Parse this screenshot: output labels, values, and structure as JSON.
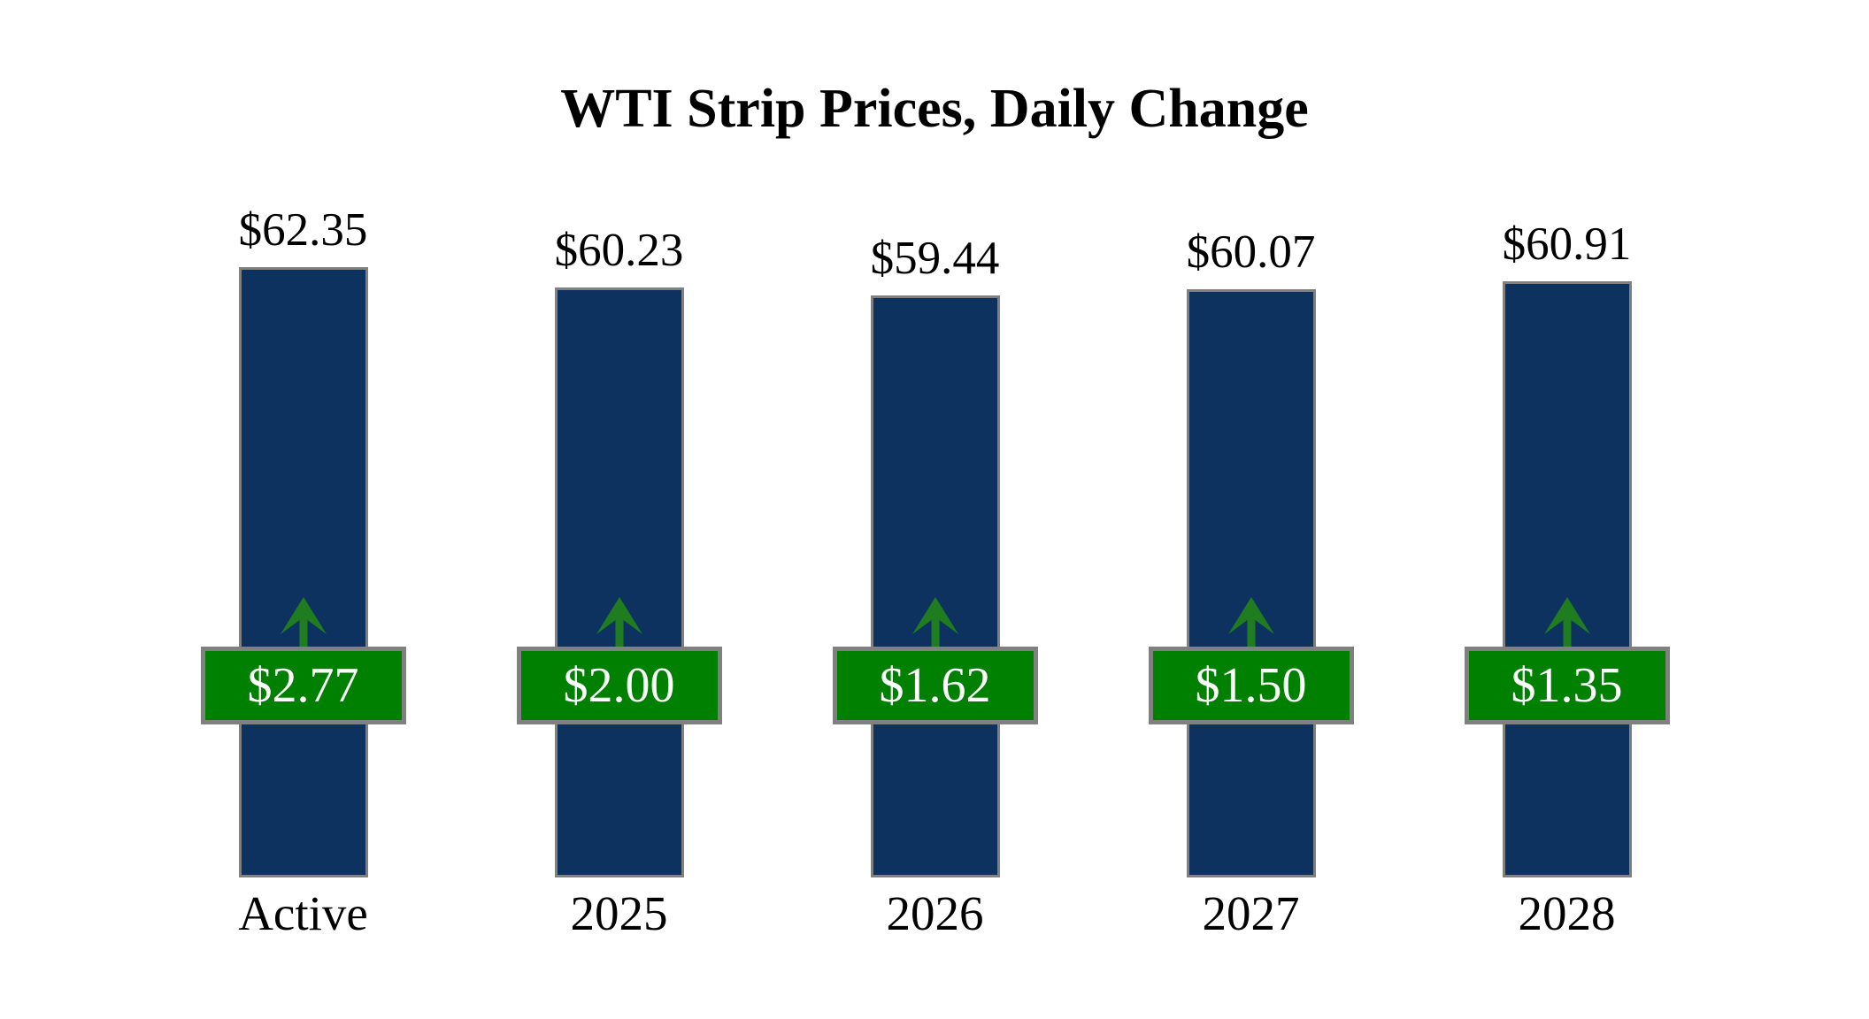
{
  "chart_data": {
    "type": "bar",
    "title": "WTI Strip Prices, Daily Change",
    "categories": [
      "Active",
      "2025",
      "2026",
      "2027",
      "2028"
    ],
    "values": [
      62.35,
      60.23,
      59.44,
      60.07,
      60.91
    ],
    "series": [
      {
        "name": "Strip Price",
        "values": [
          62.35,
          60.23,
          59.44,
          60.07,
          60.91
        ]
      },
      {
        "name": "Daily Change",
        "values": [
          2.77,
          2.0,
          1.62,
          1.5,
          1.35
        ]
      }
    ],
    "points": [
      {
        "category": "Active",
        "value": 62.35,
        "value_label": "$62.35",
        "change_value": 2.77,
        "change_label": "$2.77",
        "change_direction": "up"
      },
      {
        "category": "2025",
        "value": 60.23,
        "value_label": "$60.23",
        "change_value": 2.0,
        "change_label": "$2.00",
        "change_direction": "up"
      },
      {
        "category": "2026",
        "value": 59.44,
        "value_label": "$59.44",
        "change_value": 1.62,
        "change_label": "$1.62",
        "change_direction": "up"
      },
      {
        "category": "2027",
        "value": 60.07,
        "value_label": "$60.07",
        "change_value": 1.5,
        "change_label": "$1.50",
        "change_direction": "up"
      },
      {
        "category": "2028",
        "value": 60.91,
        "value_label": "$60.91",
        "change_value": 1.35,
        "change_label": "$1.35",
        "change_direction": "up"
      }
    ],
    "xlabel": "",
    "ylabel": "",
    "ylim": [
      0,
      62.35
    ],
    "grid": false,
    "legend": "none",
    "colors": {
      "bar": "#0e3260",
      "badge": "#008000",
      "arrow": "#1f7d1f",
      "border": "#808080",
      "title_text": "#000000",
      "badge_text": "#ffffff"
    },
    "icons": {
      "up_arrow": "up-arrow-icon"
    }
  }
}
